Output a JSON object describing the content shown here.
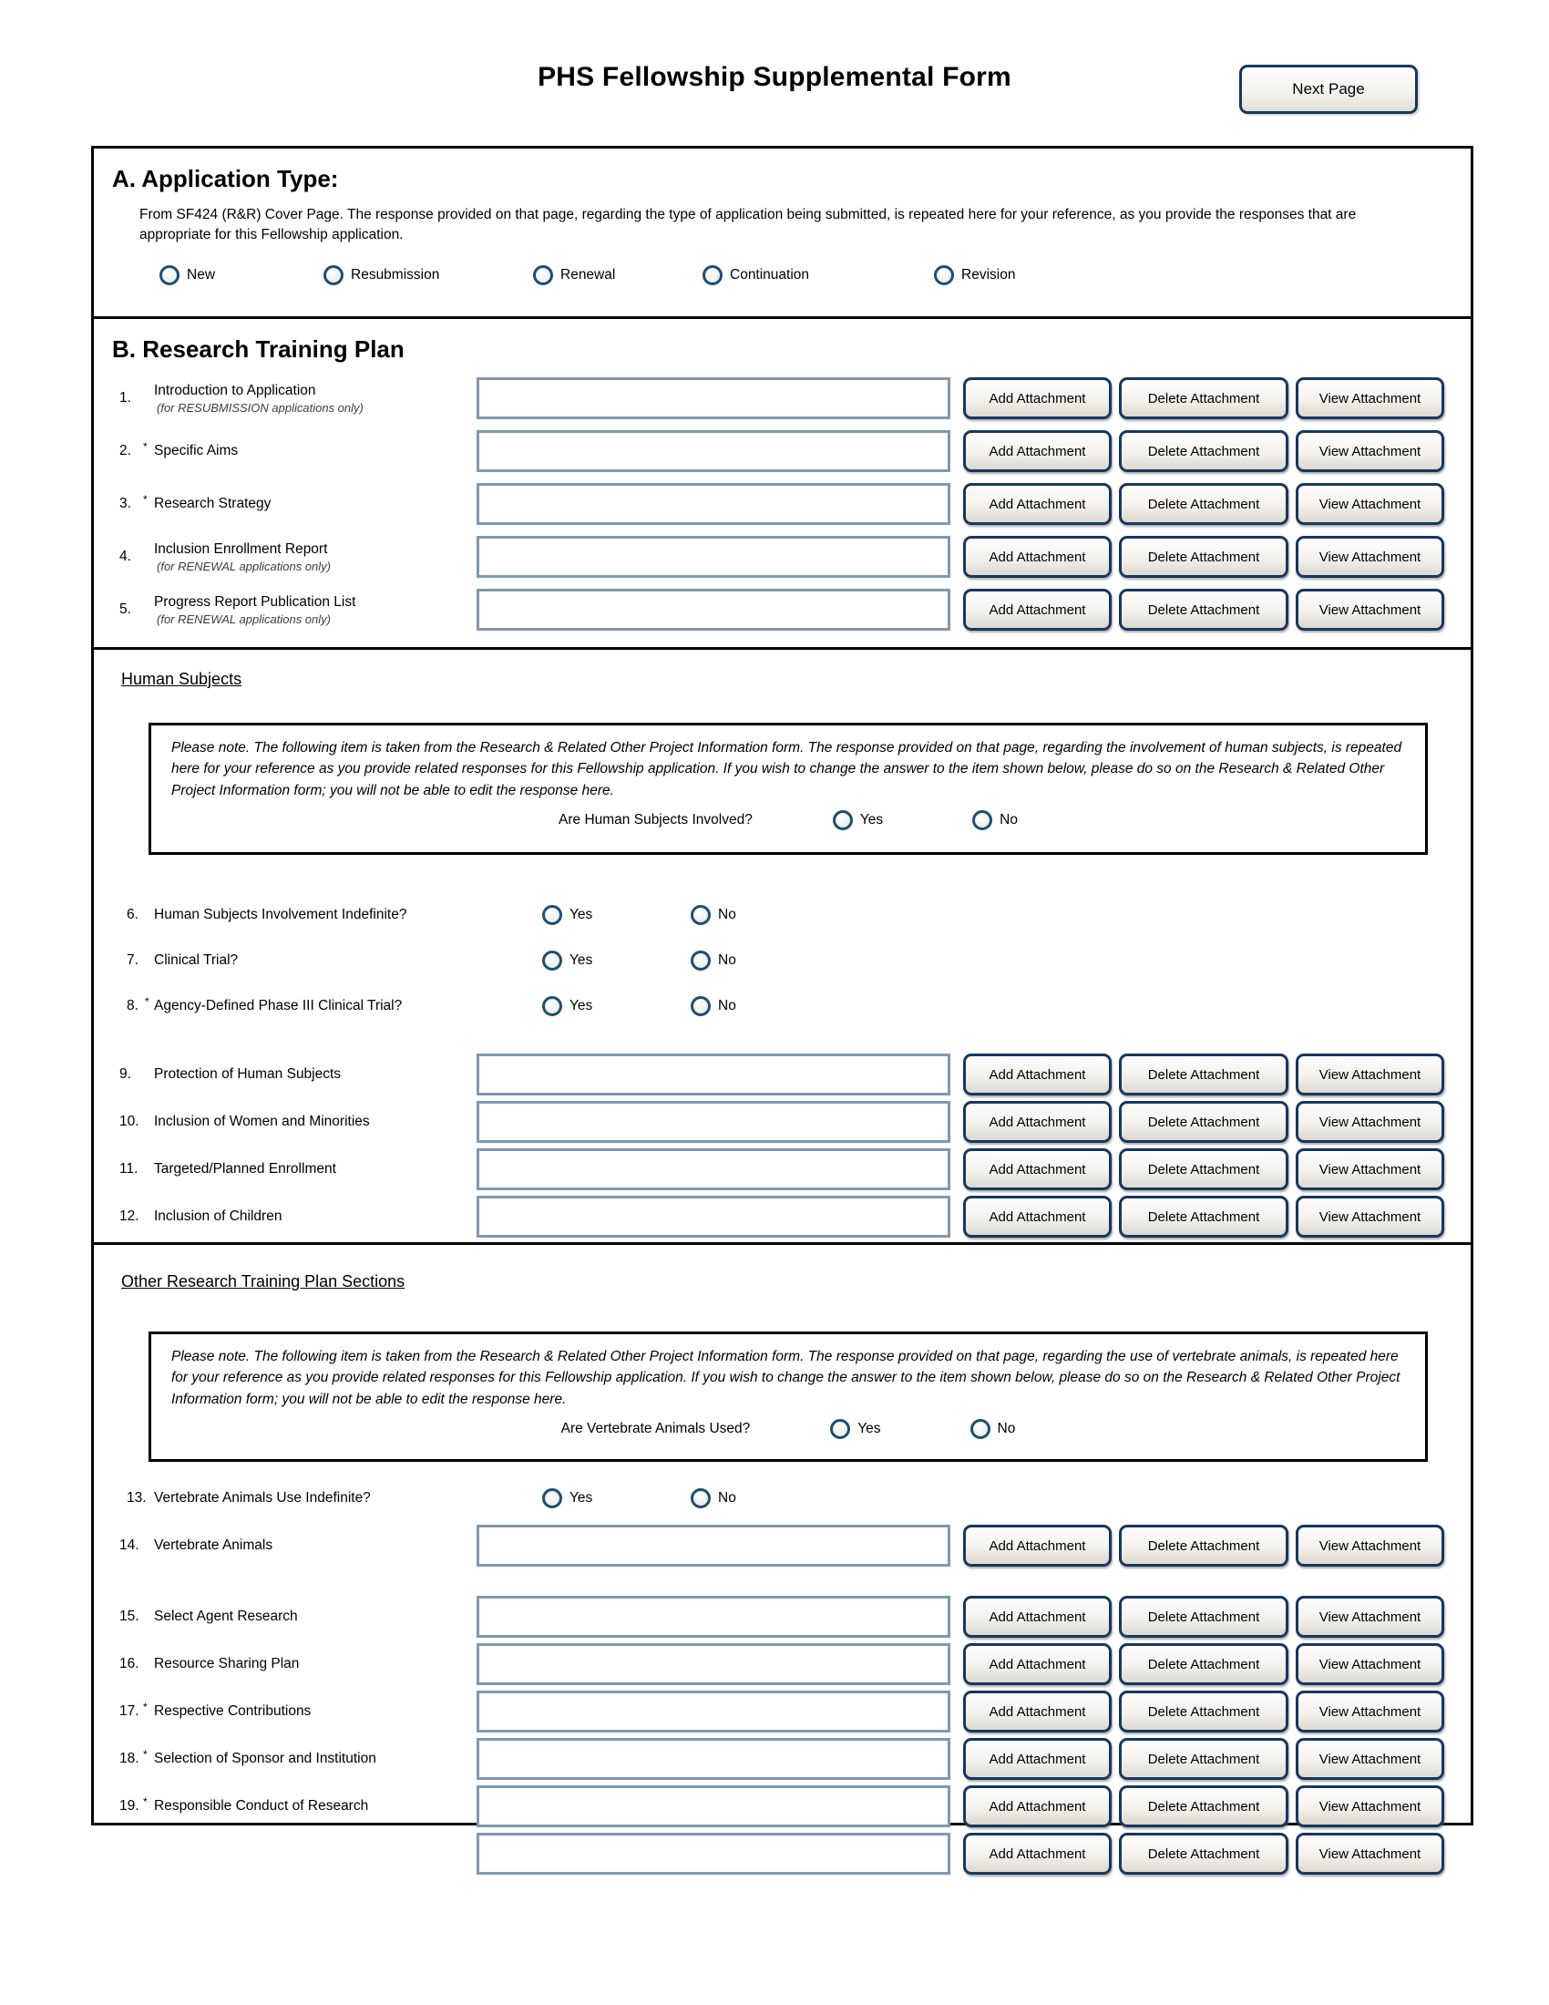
{
  "header": {
    "title": "PHS Fellowship Supplemental Form",
    "next_page_label": "Next Page"
  },
  "labels": {
    "yes": "Yes",
    "no": "No"
  },
  "attachment_buttons": {
    "add": "Add Attachment",
    "delete": "Delete Attachment",
    "view": "View Attachment"
  },
  "colors": {
    "button_border_navy": "#17375e",
    "input_border_slate": "#7e99b0",
    "radio_ring_blue": "#1e4e72",
    "box_border": "#000000"
  },
  "section_a": {
    "heading": "A. Application Type:",
    "description": "From SF424 (R&R) Cover Page.  The response provided on that page, regarding the type of application being submitted, is repeated here for your reference, as you provide the responses that are appropriate for this Fellowship application.",
    "options": [
      "New",
      "Resubmission",
      "Renewal",
      "Continuation",
      "Revision"
    ]
  },
  "section_b": {
    "heading": "B. Research Training Plan",
    "items": [
      {
        "number": "1.",
        "label": "Introduction to Application",
        "note": "(for RESUBMISSION applications only)"
      },
      {
        "number": "2.",
        "star": "*",
        "label": "Specific Aims"
      },
      {
        "number": "3.",
        "star": "*",
        "label": "Research Strategy"
      },
      {
        "number": "4.",
        "label": "Inclusion Enrollment Report",
        "note": "(for RENEWAL applications only)"
      },
      {
        "number": "5.",
        "label": "Progress Report Publication List",
        "note": "(for RENEWAL applications only)"
      }
    ]
  },
  "human_subjects": {
    "heading": "Human Subjects",
    "note": "Please note.  The following item is taken from the Research & Related Other Project Information form. The response provided on that page, regarding the involvement of human subjects, is repeated here for your reference as you provide related responses for this Fellowship application. If you wish to change the answer to the item shown below, please do so on the Research & Related Other Project Information form; you will not be able to edit the response here.",
    "gating_question": "Are Human Subjects Involved?",
    "questions": [
      {
        "number": "6.",
        "label": "Human Subjects Involvement Indefinite?"
      },
      {
        "number": "7.",
        "label": "Clinical Trial?"
      },
      {
        "number": "8.",
        "star": "*",
        "label": "Agency-Defined Phase III Clinical Trial?"
      }
    ],
    "attachments": [
      {
        "number": "9.",
        "label": "Protection of Human Subjects"
      },
      {
        "number": "10.",
        "label": "Inclusion of Women and Minorities"
      },
      {
        "number": "11.",
        "label": "Targeted/Planned Enrollment"
      },
      {
        "number": "12.",
        "label": "Inclusion of Children"
      }
    ]
  },
  "other_sections": {
    "heading": "Other Research Training Plan Sections",
    "note": "Please note.  The following item is taken from the Research & Related Other Project Information form. The response provided on that page, regarding the use of vertebrate animals, is repeated here for your reference as you provide related responses for this Fellowship application. If you wish to change the answer to the item shown below, please do so on the Research & Related Other Project Information form; you will not be able to edit the response here.",
    "gating_question": "Are Vertebrate Animals Used?",
    "questions": [
      {
        "number": "13.",
        "label": "Vertebrate Animals Use Indefinite?"
      }
    ],
    "attachment_14": {
      "number": "14.",
      "label": "Vertebrate Animals"
    },
    "attachments": [
      {
        "number": "15.",
        "label": "Select Agent Research"
      },
      {
        "number": "16.",
        "label": "Resource Sharing Plan"
      },
      {
        "number": "17.",
        "star": "*",
        "label": "Respective Contributions"
      },
      {
        "number": "18.",
        "star": "*",
        "label": "Selection of Sponsor and Institution"
      },
      {
        "number": "19.",
        "star": "*",
        "label": "Responsible Conduct of Research"
      }
    ]
  }
}
